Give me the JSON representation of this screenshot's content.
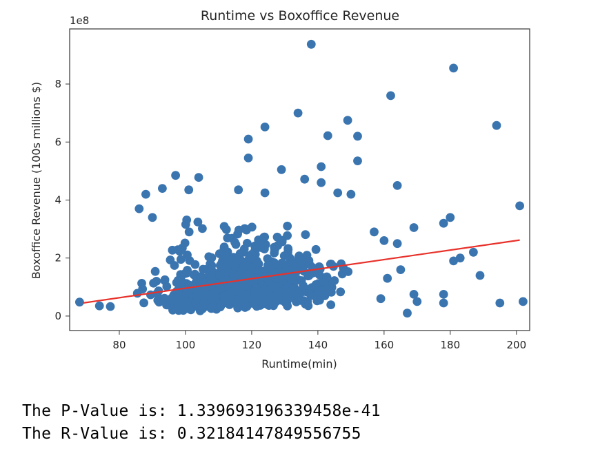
{
  "chart_data": {
    "type": "scatter",
    "title": "Runtime vs Boxoffice Revenue",
    "xlabel": "Runtime(min)",
    "ylabel": "Boxoffice Revenue (100s millions $)",
    "y_offset_label": "1e8",
    "xlim": [
      65,
      204
    ],
    "ylim": [
      -0.5,
      9.9
    ],
    "xticks": [
      80,
      100,
      120,
      140,
      160,
      180,
      200
    ],
    "yticks": [
      0,
      2,
      4,
      6,
      8
    ],
    "grid": false,
    "point_color": "#3a75b0",
    "line_color": "#e8312a",
    "regression_line": {
      "x": [
        69,
        201
      ],
      "y": [
        0.45,
        2.62
      ]
    },
    "highlighted_points": [
      {
        "x": 138,
        "y": 9.37
      },
      {
        "x": 181,
        "y": 8.55
      },
      {
        "x": 162,
        "y": 7.6
      },
      {
        "x": 134,
        "y": 7.0
      },
      {
        "x": 149,
        "y": 6.75
      },
      {
        "x": 194,
        "y": 6.57
      },
      {
        "x": 124,
        "y": 6.52
      },
      {
        "x": 143,
        "y": 6.22
      },
      {
        "x": 152,
        "y": 6.2
      },
      {
        "x": 119,
        "y": 6.1
      },
      {
        "x": 152,
        "y": 5.35
      },
      {
        "x": 119,
        "y": 5.45
      },
      {
        "x": 141,
        "y": 5.15
      },
      {
        "x": 129,
        "y": 5.05
      },
      {
        "x": 97,
        "y": 4.85
      },
      {
        "x": 104,
        "y": 4.78
      },
      {
        "x": 136,
        "y": 4.72
      },
      {
        "x": 141,
        "y": 4.6
      },
      {
        "x": 164,
        "y": 4.5
      },
      {
        "x": 93,
        "y": 4.4
      },
      {
        "x": 116,
        "y": 4.35
      },
      {
        "x": 101,
        "y": 4.35
      },
      {
        "x": 124,
        "y": 4.25
      },
      {
        "x": 88,
        "y": 4.2
      },
      {
        "x": 146,
        "y": 4.25
      },
      {
        "x": 150,
        "y": 4.2
      },
      {
        "x": 201,
        "y": 3.8
      },
      {
        "x": 180,
        "y": 3.4
      },
      {
        "x": 178,
        "y": 3.2
      },
      {
        "x": 169,
        "y": 3.05
      },
      {
        "x": 160,
        "y": 2.6
      },
      {
        "x": 164,
        "y": 2.5
      },
      {
        "x": 187,
        "y": 2.2
      },
      {
        "x": 183,
        "y": 2.0
      },
      {
        "x": 181,
        "y": 1.9
      },
      {
        "x": 189,
        "y": 1.4
      },
      {
        "x": 165,
        "y": 1.6
      },
      {
        "x": 195,
        "y": 0.45
      },
      {
        "x": 202,
        "y": 0.5
      },
      {
        "x": 178,
        "y": 0.75
      },
      {
        "x": 178,
        "y": 0.45
      },
      {
        "x": 170,
        "y": 0.5
      },
      {
        "x": 167,
        "y": 0.1
      },
      {
        "x": 169,
        "y": 0.75
      },
      {
        "x": 161,
        "y": 1.3
      },
      {
        "x": 159,
        "y": 0.6
      },
      {
        "x": 157,
        "y": 2.9
      },
      {
        "x": 68,
        "y": 0.48
      },
      {
        "x": 74,
        "y": 0.35
      },
      {
        "x": 86,
        "y": 3.7
      },
      {
        "x": 90,
        "y": 3.4
      }
    ]
  },
  "output": {
    "p_value_line": "The P-Value is: 1.339693196339458e-41",
    "r_value_line": "The R-Value is: 0.32184147849556755"
  }
}
